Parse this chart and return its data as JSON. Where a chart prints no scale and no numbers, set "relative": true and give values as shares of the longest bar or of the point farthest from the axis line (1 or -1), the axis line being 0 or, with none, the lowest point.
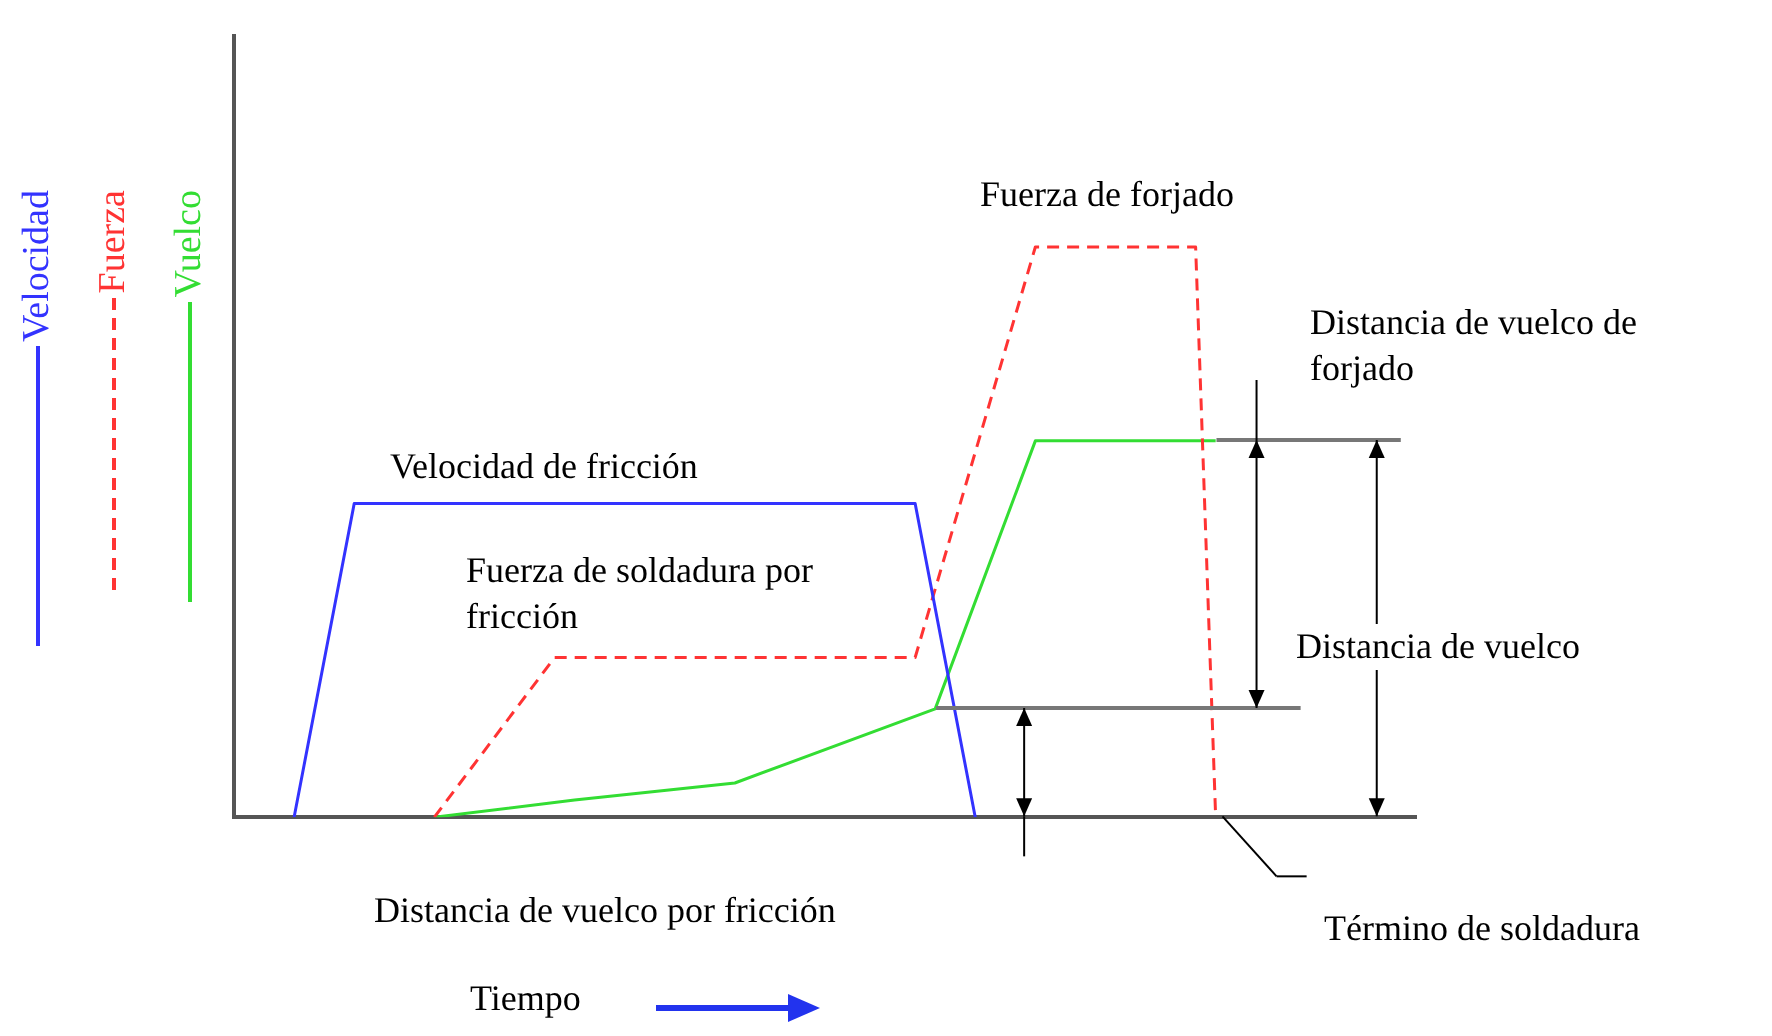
{
  "chart_data": {
    "type": "line",
    "relative": true,
    "xlabel": "Tiempo",
    "legend": "left",
    "marker": "none",
    "categories": [
      null,
      null,
      null,
      null,
      null,
      null,
      null,
      null,
      null,
      null,
      null,
      null,
      null,
      null,
      null,
      null,
      null,
      null,
      null,
      null,
      null,
      null,
      null,
      null,
      null,
      null,
      null,
      null,
      null,
      null,
      null,
      null,
      null,
      null,
      null,
      null,
      null,
      null,
      null,
      null,
      null,
      null,
      null,
      null,
      null,
      null,
      null,
      null,
      null,
      null,
      null,
      null,
      null,
      null,
      null,
      null,
      null,
      null,
      null,
      null
    ],
    "series": [
      {
        "name": "Velocidad",
        "color": "#3333ff",
        "line_style": "solid",
        "values": [
          null,
          null,
          null,
          0,
          null,
          null,
          0.55,
          null,
          null,
          null,
          null,
          null,
          null,
          null,
          null,
          null,
          null,
          null,
          null,
          null,
          null,
          null,
          null,
          null,
          null,
          null,
          null,
          null,
          null,
          null,
          null,
          null,
          null,
          null,
          0.55,
          null,
          null,
          0,
          null,
          null,
          null,
          null,
          null,
          null,
          null,
          null,
          null,
          null,
          null,
          null,
          null,
          null,
          null,
          null,
          null,
          null,
          null,
          null,
          null,
          null
        ]
      },
      {
        "name": "Fuerza",
        "color": "#ff3333",
        "line_style": "dashed",
        "values": [
          null,
          null,
          null,
          null,
          null,
          null,
          null,
          null,
          null,
          null,
          0,
          null,
          null,
          null,
          null,
          null,
          0.28,
          null,
          null,
          null,
          null,
          null,
          null,
          null,
          null,
          null,
          null,
          null,
          null,
          null,
          null,
          null,
          null,
          null,
          0.28,
          null,
          null,
          null,
          null,
          null,
          1,
          null,
          null,
          null,
          null,
          null,
          null,
          null,
          1,
          0,
          null,
          null,
          null,
          null,
          null,
          null,
          null,
          null,
          null,
          null
        ]
      },
      {
        "name": "Vuelco",
        "color": "#33dd33",
        "line_style": "solid",
        "values": [
          null,
          null,
          null,
          null,
          null,
          null,
          null,
          null,
          null,
          null,
          0,
          null,
          null,
          null,
          null,
          null,
          null,
          0.03,
          null,
          null,
          null,
          null,
          null,
          null,
          null,
          0.06,
          null,
          null,
          null,
          null,
          null,
          null,
          null,
          null,
          null,
          0.19,
          null,
          null,
          null,
          null,
          0.66,
          null,
          null,
          null,
          null,
          null,
          null,
          null,
          null,
          0.66,
          null,
          null,
          null,
          null,
          null,
          null,
          null,
          null,
          null,
          null
        ]
      }
    ],
    "annotations": [
      "Velocidad de fricción",
      "Fuerza de forjado",
      "Fuerza de soldadura por fricción",
      "Distancia de vuelco de forjado",
      "Distancia de vuelco",
      "Distancia de vuelco por fricción",
      "Término de soldadura"
    ]
  }
}
